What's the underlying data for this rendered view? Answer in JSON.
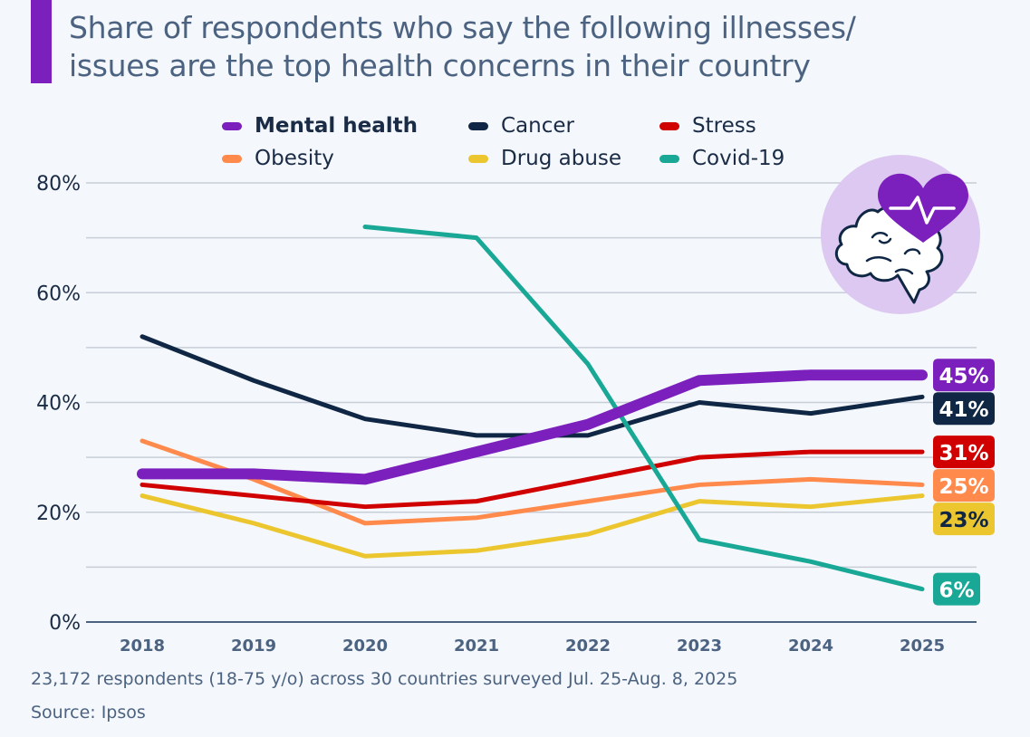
{
  "title": "Share of respondents who say the following illnesses/ issues are the top health concerns in their country",
  "title_lines": [
    "Share of respondents who say the following illnesses/",
    "issues are the top health concerns in their country"
  ],
  "accent_color": "#7b1fbd",
  "icon": "brain-heart-icon",
  "footnote": "23,172 respondents (18-75 y/o) across 30 countries surveyed Jul. 25-Aug. 8, 2025",
  "source": "Source: Ipsos",
  "chart_data": {
    "type": "line",
    "title": "Share of respondents who say the following illnesses/ issues are the top health concerns in their country",
    "xlabel": "",
    "ylabel": "",
    "x": [
      "2018",
      "2019",
      "2020",
      "2021",
      "2022",
      "2023",
      "2024",
      "2025"
    ],
    "ylim": [
      0,
      80
    ],
    "yticks": [
      0,
      20,
      40,
      60,
      80
    ],
    "ytick_labels": [
      "0%",
      "20%",
      "40%",
      "60%",
      "80%"
    ],
    "grid": true,
    "grid_step": 10,
    "legend_position": "top",
    "series": [
      {
        "name": "Mental health",
        "color": "#7b1fbd",
        "bold": true,
        "emphasis": true,
        "values": [
          27,
          27,
          26,
          31,
          36,
          44,
          45,
          45
        ],
        "end_label": "45%",
        "label_text_color": "#ffffff"
      },
      {
        "name": "Cancer",
        "color": "#0f2744",
        "bold": false,
        "values": [
          52,
          44,
          37,
          34,
          34,
          40,
          38,
          41
        ],
        "end_label": "41%",
        "label_text_color": "#ffffff"
      },
      {
        "name": "Stress",
        "color": "#d00000",
        "bold": false,
        "values": [
          25,
          23,
          21,
          22,
          26,
          30,
          31,
          31
        ],
        "end_label": "31%",
        "label_text_color": "#ffffff"
      },
      {
        "name": "Obesity",
        "color": "#ff8a4c",
        "bold": false,
        "values": [
          33,
          26,
          18,
          19,
          22,
          25,
          26,
          25
        ],
        "end_label": "25%",
        "label_text_color": "#ffffff"
      },
      {
        "name": "Drug abuse",
        "color": "#ecc62f",
        "bold": false,
        "values": [
          23,
          18,
          12,
          13,
          16,
          22,
          21,
          23
        ],
        "end_label": "23%",
        "label_text_color": "#0f2744"
      },
      {
        "name": "Covid-19",
        "color": "#1aa896",
        "bold": false,
        "values": [
          null,
          null,
          72,
          70,
          47,
          15,
          11,
          6
        ],
        "end_label": "6%",
        "label_text_color": "#ffffff"
      }
    ]
  }
}
